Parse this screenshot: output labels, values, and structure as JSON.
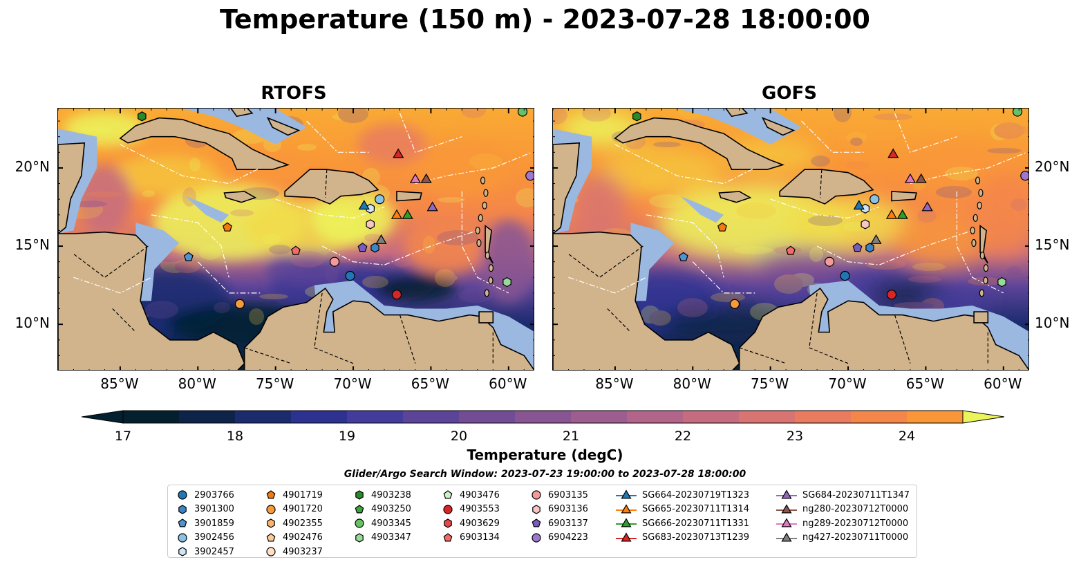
{
  "title": "Temperature (150 m) - 2023-07-28 18:00:00",
  "panels": [
    {
      "title": "RTOFS",
      "variant": "rtofs"
    },
    {
      "title": "GOFS",
      "variant": "gofs"
    }
  ],
  "axes": {
    "lon_ticks": [
      "85°W",
      "80°W",
      "75°W",
      "70°W",
      "65°W",
      "60°W"
    ],
    "lon_values": [
      -85,
      -80,
      -75,
      -70,
      -65,
      -60
    ],
    "lat_ticks": [
      "20°N",
      "15°N",
      "10°N"
    ],
    "lat_values": [
      20,
      15,
      10
    ],
    "extent": {
      "lon_min": -89,
      "lon_max": -58.3,
      "lat_min": 7,
      "lat_max": 23.8
    }
  },
  "colorbar": {
    "label": "Temperature (degC)",
    "ticks": [
      "17",
      "18",
      "19",
      "20",
      "21",
      "22",
      "23",
      "24"
    ],
    "tick_values": [
      17,
      18,
      19,
      20,
      21,
      22,
      23,
      24
    ],
    "min": 17,
    "max": 24.5,
    "step": 0.5,
    "colors": [
      "#04202f",
      "#0d2347",
      "#1b2b6e",
      "#2d3190",
      "#443c9c",
      "#5c4499",
      "#724d95",
      "#885592",
      "#9d5d8e",
      "#b3648a",
      "#c66c80",
      "#d87471",
      "#e97c5f",
      "#f4864a",
      "#f99638",
      "#f9aa34",
      "#f6c43c",
      "#f2dc4a",
      "#ecf45c"
    ],
    "colors_under": "#04202f",
    "colors_over": "#ecf45c"
  },
  "legend": {
    "title": "Glider/Argo Search Window: 2023-07-23 19:00:00 to 2023-07-28 18:00:00",
    "items": [
      {
        "label": "2903766",
        "marker": "circle",
        "color": "#1f77b4"
      },
      {
        "label": "3901300",
        "marker": "hexagon",
        "color": "#3d85c6"
      },
      {
        "label": "3901859",
        "marker": "pentagon",
        "color": "#4f93d0"
      },
      {
        "label": "3902456",
        "marker": "circle",
        "color": "#8cc1e6"
      },
      {
        "label": "3902457",
        "marker": "hexagon",
        "color": "#d0e6f7"
      },
      {
        "label": "4901719",
        "marker": "pentagon",
        "color": "#f27a12"
      },
      {
        "label": "4901720",
        "marker": "circle",
        "color": "#f79a3e"
      },
      {
        "label": "4902355",
        "marker": "hexagon",
        "color": "#fbb36e"
      },
      {
        "label": "4902476",
        "marker": "pentagon",
        "color": "#fdc998"
      },
      {
        "label": "4903237",
        "marker": "circle",
        "color": "#fde0c5"
      },
      {
        "label": "4903238",
        "marker": "hexagon",
        "color": "#2a8a2a"
      },
      {
        "label": "4903250",
        "marker": "pentagon",
        "color": "#3fa33f"
      },
      {
        "label": "4903345",
        "marker": "circle",
        "color": "#66c266"
      },
      {
        "label": "4903347",
        "marker": "hexagon",
        "color": "#98da98"
      },
      {
        "label": "4903476",
        "marker": "pentagon",
        "color": "#cdf0c8"
      },
      {
        "label": "4903553",
        "marker": "circle",
        "color": "#d62728"
      },
      {
        "label": "4903629",
        "marker": "hexagon",
        "color": "#e8474a"
      },
      {
        "label": "6903134",
        "marker": "pentagon",
        "color": "#f26b6b"
      },
      {
        "label": "6903135",
        "marker": "circle",
        "color": "#f49a9a"
      },
      {
        "label": "6903136",
        "marker": "hexagon",
        "color": "#f9c6c6"
      },
      {
        "label": "6903137",
        "marker": "pentagon",
        "color": "#7a5bbf"
      },
      {
        "label": "6904223",
        "marker": "circle",
        "color": "#9c78cf"
      },
      {
        "label": "SG664-20230719T1323",
        "marker": "triangle",
        "color": "#1f77b4"
      },
      {
        "label": "SG665-20230711T1314",
        "marker": "triangle",
        "color": "#ff7f0e"
      },
      {
        "label": "SG666-20230711T1331",
        "marker": "triangle",
        "color": "#2ca02c"
      },
      {
        "label": "SG683-20230713T1239",
        "marker": "triangle",
        "color": "#d62728"
      },
      {
        "label": "SG684-20230711T1347",
        "marker": "triangle",
        "color": "#9467bd"
      },
      {
        "label": "ng280-20230712T0000",
        "marker": "triangle",
        "color": "#8c564b"
      },
      {
        "label": "ng289-20230712T0000",
        "marker": "triangle",
        "color": "#e377c2"
      },
      {
        "label": "ng427-20230711T0000",
        "marker": "triangle",
        "color": "#7f7f7f"
      }
    ]
  },
  "observations": [
    {
      "label": "2903766",
      "lon": -70.2,
      "lat": 13.1
    },
    {
      "label": "3901300",
      "lon": -68.6,
      "lat": 14.9
    },
    {
      "label": "3902456",
      "lon": -68.3,
      "lat": 18.0
    },
    {
      "label": "3902457",
      "lon": -68.9,
      "lat": 17.4
    },
    {
      "label": "4901719",
      "lon": -78.1,
      "lat": 16.2
    },
    {
      "label": "4901720",
      "lon": -77.3,
      "lat": 11.3
    },
    {
      "label": "4903238",
      "lon": -83.6,
      "lat": 23.3
    },
    {
      "label": "4903345",
      "lon": -59.1,
      "lat": 23.6
    },
    {
      "label": "4903347",
      "lon": -60.1,
      "lat": 12.7
    },
    {
      "label": "4903553",
      "lon": -67.2,
      "lat": 11.9
    },
    {
      "label": "6903134",
      "lon": -73.7,
      "lat": 14.7
    },
    {
      "label": "6903135",
      "lon": -71.2,
      "lat": 14.0
    },
    {
      "label": "6903136",
      "lon": -68.9,
      "lat": 16.4
    },
    {
      "label": "6903137",
      "lon": -69.4,
      "lat": 14.9
    },
    {
      "label": "6904223",
      "lon": -58.6,
      "lat": 19.5
    },
    {
      "label": "3901859",
      "lon": -80.6,
      "lat": 14.3
    },
    {
      "label": "SG664-20230719T1323",
      "lon": -69.3,
      "lat": 17.6
    },
    {
      "label": "SG665-20230711T1314",
      "lon": -67.2,
      "lat": 17.0
    },
    {
      "label": "SG666-20230711T1331",
      "lon": -66.5,
      "lat": 17.0
    },
    {
      "label": "SG683-20230713T1239",
      "lon": -67.1,
      "lat": 20.9
    },
    {
      "label": "SG684-20230711T1347",
      "lon": -64.9,
      "lat": 17.5
    },
    {
      "label": "ng280-20230712T0000",
      "lon": -65.3,
      "lat": 19.3
    },
    {
      "label": "ng289-20230712T0000",
      "lon": -66.0,
      "lat": 19.3
    },
    {
      "label": "ng427-20230711T0000",
      "lon": -68.2,
      "lat": 15.4
    }
  ]
}
